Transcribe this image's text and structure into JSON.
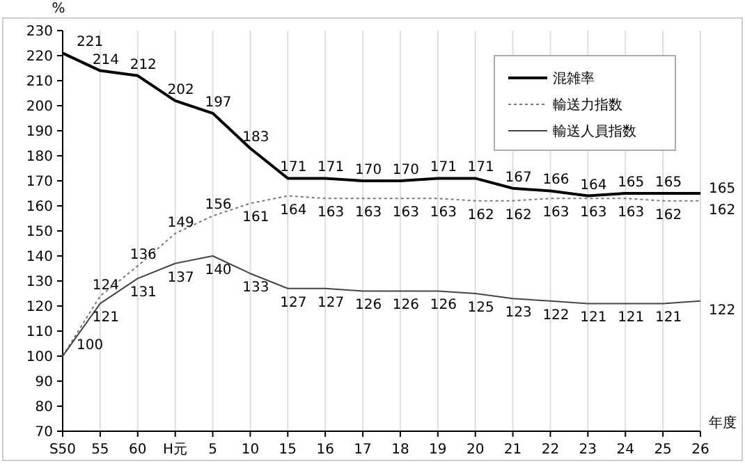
{
  "chart_data": {
    "type": "line",
    "ylabel": "%",
    "xlabel": "年度",
    "categories": [
      "S50",
      "55",
      "60",
      "H元",
      "5",
      "10",
      "15",
      "16",
      "17",
      "18",
      "19",
      "20",
      "21",
      "22",
      "23",
      "24",
      "25",
      "26"
    ],
    "series": [
      {
        "name": "混雑率",
        "color": "#000000",
        "line_style": "solid",
        "values": [
          221,
          214,
          212,
          202,
          197,
          183,
          171,
          171,
          170,
          170,
          171,
          171,
          167,
          166,
          164,
          165,
          165,
          165
        ]
      },
      {
        "name": "輸送力指数",
        "color": "#777777",
        "line_style": "dotted",
        "values": [
          100,
          124,
          136,
          149,
          156,
          161,
          164,
          163,
          163,
          163,
          163,
          162,
          162,
          163,
          163,
          163,
          162,
          162
        ],
        "value_labels": [
          null,
          "124",
          "136",
          "149",
          "156",
          "161",
          "164",
          "163",
          "163",
          "163",
          "163",
          "162",
          "162",
          "163",
          "163",
          "163",
          "162",
          "162"
        ]
      },
      {
        "name": "輸送人員指数",
        "color": "#444444",
        "line_style": "solid",
        "values": [
          100,
          121,
          131,
          137,
          140,
          133,
          127,
          127,
          126,
          126,
          126,
          125,
          123,
          122,
          121,
          121,
          121,
          122
        ]
      }
    ],
    "ylim": [
      70,
      230
    ],
    "yticks": [
      70,
      80,
      90,
      100,
      110,
      120,
      130,
      140,
      150,
      160,
      170,
      180,
      190,
      200,
      210,
      220,
      230
    ],
    "grid": "x",
    "legend": "top right",
    "marker": "none",
    "data_labels": true
  }
}
